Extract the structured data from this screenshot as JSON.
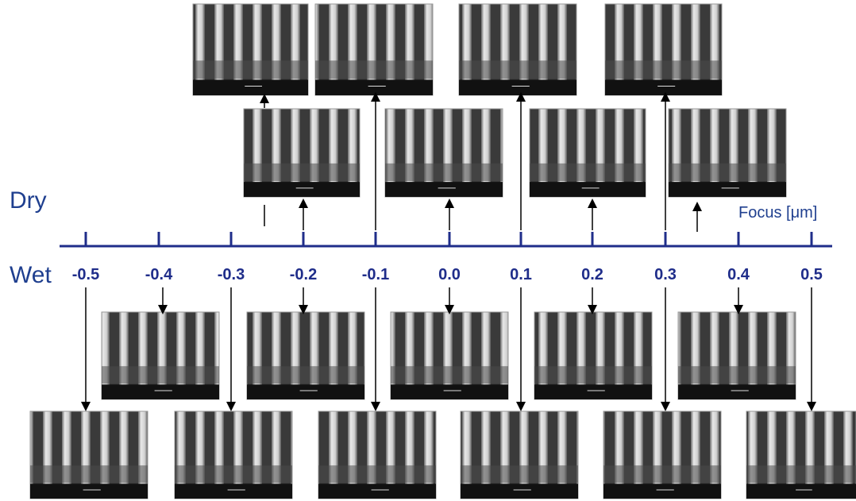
{
  "labels": {
    "dry": "Dry",
    "wet": "Wet",
    "axis_title": "Focus [μm]"
  },
  "axis": {
    "ticks": [
      "-0.5",
      "-0.4",
      "-0.3",
      "-0.2",
      "-0.1",
      "0.0",
      "0.1",
      "0.2",
      "0.3",
      "0.4",
      "0.5"
    ]
  }
}
